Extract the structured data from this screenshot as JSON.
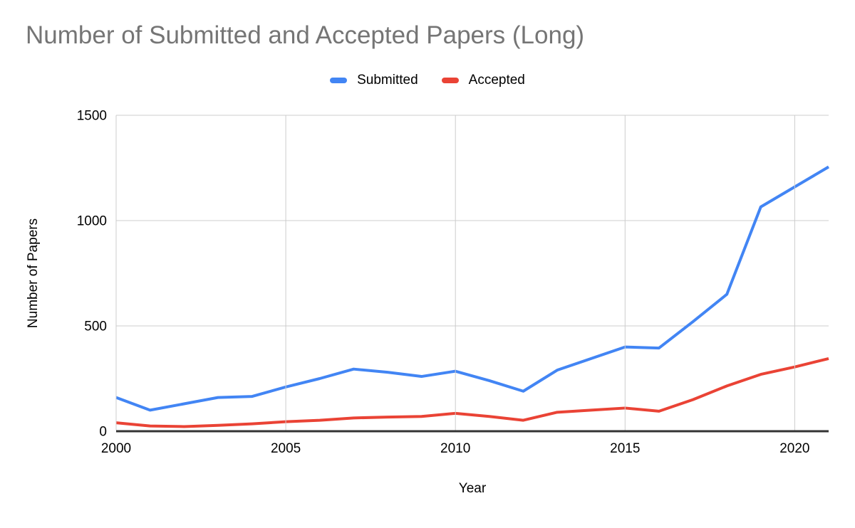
{
  "page": {
    "background": "#ffffff"
  },
  "chart_data": {
    "type": "line",
    "title": "Number of Submitted and Accepted Papers (Long)",
    "xlabel": "Year",
    "ylabel": "Number of Papers",
    "x": [
      2000,
      2001,
      2002,
      2003,
      2004,
      2005,
      2006,
      2007,
      2008,
      2009,
      2010,
      2011,
      2012,
      2013,
      2014,
      2015,
      2016,
      2017,
      2018,
      2019,
      2020,
      2021
    ],
    "series": [
      {
        "name": "Submitted",
        "color": "#4285F4",
        "values": [
          160,
          100,
          130,
          160,
          165,
          210,
          250,
          295,
          280,
          260,
          285,
          240,
          190,
          290,
          345,
          400,
          395,
          520,
          650,
          1065,
          1160,
          1255
        ]
      },
      {
        "name": "Accepted",
        "color": "#EA4335",
        "values": [
          40,
          25,
          22,
          28,
          35,
          45,
          52,
          63,
          67,
          70,
          85,
          70,
          52,
          90,
          100,
          110,
          95,
          150,
          215,
          270,
          305,
          345
        ]
      }
    ],
    "x_ticks": [
      2000,
      2005,
      2010,
      2015,
      2020
    ],
    "y_ticks": [
      0,
      500,
      1000,
      1500
    ],
    "xlim": [
      2000,
      2021
    ],
    "ylim": [
      0,
      1500
    ],
    "grid": true,
    "legend_position": "top",
    "colors": {
      "title": "#757575",
      "axis_text": "#000000",
      "gridline": "#cccccc",
      "baseline": "#333333",
      "background": "#ffffff"
    }
  }
}
